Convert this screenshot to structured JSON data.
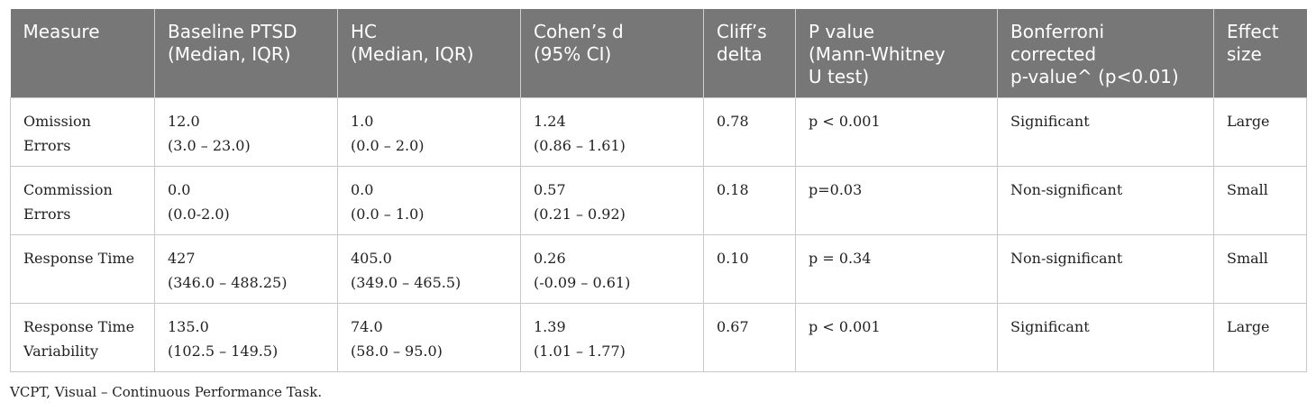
{
  "table": {
    "headers": [
      "Measure",
      "Baseline PTSD\n(Median, IQR)",
      "HC\n(Median, IQR)",
      "Cohen’s d\n(95% CI)",
      "Cliff’s\ndelta",
      "P value\n(Mann-Whitney\nU test)",
      "Bonferroni\ncorrected\np-value^ (p<0.01)",
      "Effect\nsize"
    ],
    "rows": [
      {
        "measure": "Omission\nErrors",
        "baseline": "12.0\n(3.0 – 23.0)",
        "hc": "1.0\n(0.0 – 2.0)",
        "cohens_d": "1.24\n(0.86 – 1.61)",
        "cliffs_delta": "0.78",
        "p_value": "p < 0.001",
        "bonferroni": "Significant",
        "effect_size": "Large"
      },
      {
        "measure": "Commission\nErrors",
        "baseline": "0.0\n(0.0-2.0)",
        "hc": "0.0\n(0.0 – 1.0)",
        "cohens_d": "0.57\n(0.21 – 0.92)",
        "cliffs_delta": "0.18",
        "p_value": "p=0.03",
        "bonferroni": "Non-significant",
        "effect_size": "Small"
      },
      {
        "measure": "Response Time",
        "baseline": "427\n(346.0 – 488.25)",
        "hc": "405.0\n(349.0 – 465.5)",
        "cohens_d": "0.26\n(-0.09 – 0.61)",
        "cliffs_delta": "0.10",
        "p_value": "p = 0.34",
        "bonferroni": "Non-significant",
        "effect_size": "Small"
      },
      {
        "measure": "Response Time\nVariability",
        "baseline": "135.0\n(102.5 – 149.5)",
        "hc": "74.0\n(58.0 – 95.0)",
        "cohens_d": "1.39\n(1.01 – 1.77)",
        "cliffs_delta": "0.67",
        "p_value": "p < 0.001",
        "bonferroni": "Significant",
        "effect_size": "Large"
      }
    ]
  },
  "footnote": "VCPT, Visual – Continuous Performance Task."
}
